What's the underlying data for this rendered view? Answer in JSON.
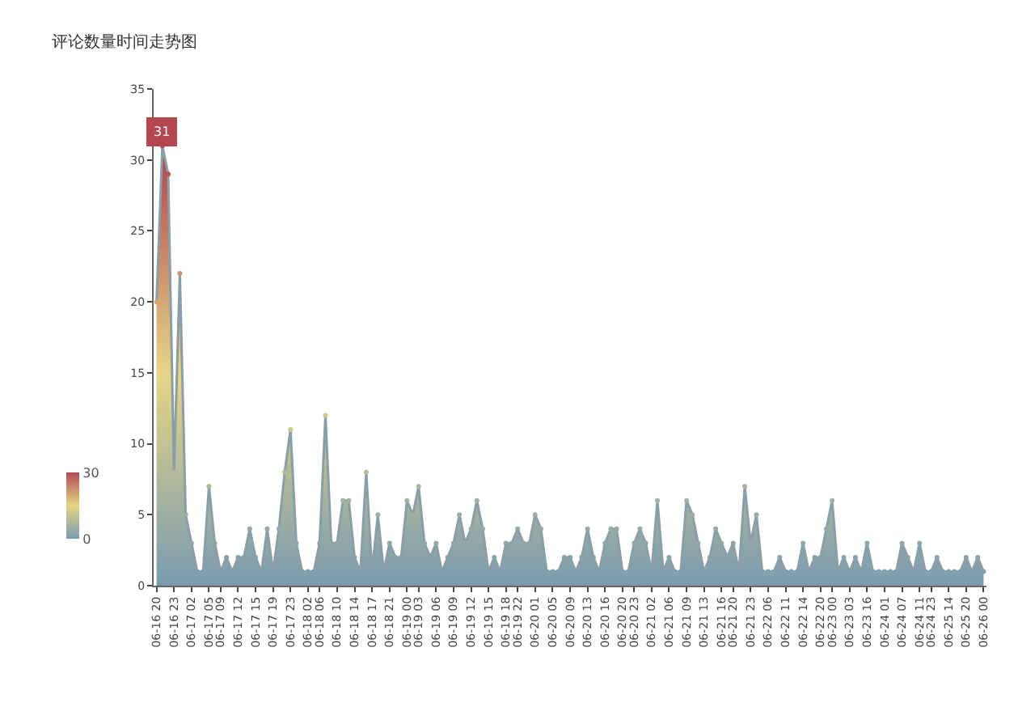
{
  "chart_data": {
    "type": "area",
    "title": "评论数量时间走势图",
    "categories": [
      "06-16 20",
      null,
      null,
      "06-16 23",
      null,
      null,
      "06-17 02",
      null,
      null,
      "06-17 05",
      null,
      "06-17 09",
      null,
      null,
      "06-17 12",
      null,
      null,
      "06-17 15",
      null,
      null,
      "06-17 19",
      null,
      null,
      "06-17 23",
      null,
      null,
      "06-18 02",
      null,
      "06-18 06",
      null,
      null,
      "06-18 10",
      null,
      null,
      "06-18 14",
      null,
      null,
      "06-18 17",
      null,
      null,
      "06-18 21",
      null,
      null,
      "06-19 00",
      null,
      "06-19 03",
      null,
      null,
      "06-19 06",
      null,
      null,
      "06-19 09",
      null,
      null,
      "06-19 12",
      null,
      null,
      "06-19 15",
      null,
      null,
      "06-19 18",
      null,
      "06-19 22",
      null,
      null,
      "06-20 01",
      null,
      null,
      "06-20 05",
      null,
      null,
      "06-20 09",
      null,
      null,
      "06-20 13",
      null,
      null,
      "06-20 16",
      null,
      null,
      "06-20 20",
      null,
      "06-20 23",
      null,
      null,
      "06-21 02",
      null,
      null,
      "06-21 06",
      null,
      null,
      "06-21 09",
      null,
      null,
      "06-21 13",
      null,
      null,
      "06-21 16",
      null,
      "06-21 20",
      null,
      null,
      "06-21 23",
      null,
      null,
      "06-22 06",
      null,
      null,
      "06-22 11",
      null,
      null,
      "06-22 14",
      null,
      null,
      "06-22 20",
      null,
      "06-23 00",
      null,
      null,
      "06-23 03",
      null,
      null,
      "06-23 16",
      null,
      null,
      "06-24 01",
      null,
      null,
      "06-24 07",
      null,
      null,
      "06-24 11",
      null,
      "06-24 23",
      null,
      null,
      "06-25 14",
      null,
      null,
      "06-25 20",
      null,
      null,
      "06-26 00"
    ],
    "series": [
      {
        "color": "#8a9ea8",
        "values": [
          20,
          31,
          29,
          8,
          22,
          5,
          3,
          1,
          1,
          7,
          3,
          1,
          2,
          1,
          2,
          2,
          4,
          2,
          1,
          4,
          1,
          4,
          8,
          11,
          3,
          1,
          1,
          1,
          3,
          12,
          3,
          3,
          6,
          6,
          2,
          1,
          8,
          1,
          5,
          1,
          3,
          2,
          2,
          6,
          5,
          7,
          3,
          2,
          3,
          1,
          2,
          3,
          5,
          3,
          4,
          6,
          4,
          1,
          2,
          1,
          3,
          3,
          4,
          3,
          3,
          5,
          4,
          1,
          1,
          1,
          2,
          2,
          1,
          2,
          4,
          2,
          1,
          3,
          4,
          4,
          1,
          1,
          3,
          4,
          3,
          1,
          6,
          1,
          2,
          1,
          1,
          6,
          5,
          3,
          1,
          2,
          4,
          3,
          2,
          3,
          1,
          7,
          3,
          5,
          1,
          1,
          1,
          2,
          1,
          1,
          1,
          3,
          1,
          2,
          2,
          4,
          6,
          1,
          2,
          1,
          2,
          1,
          3,
          1,
          1,
          1,
          1,
          1,
          3,
          2,
          1,
          3,
          1,
          1,
          2,
          1,
          1,
          1,
          1,
          2,
          1,
          2,
          1
        ]
      }
    ],
    "ylim": [
      0,
      35
    ],
    "yticks": [
      0,
      5,
      10,
      15,
      20,
      25,
      30,
      35
    ],
    "clim": [
      0,
      30
    ],
    "cticks": [
      0,
      30
    ],
    "annotations": [
      {
        "text": "31",
        "y": 31
      }
    ],
    "marker": "circle"
  }
}
